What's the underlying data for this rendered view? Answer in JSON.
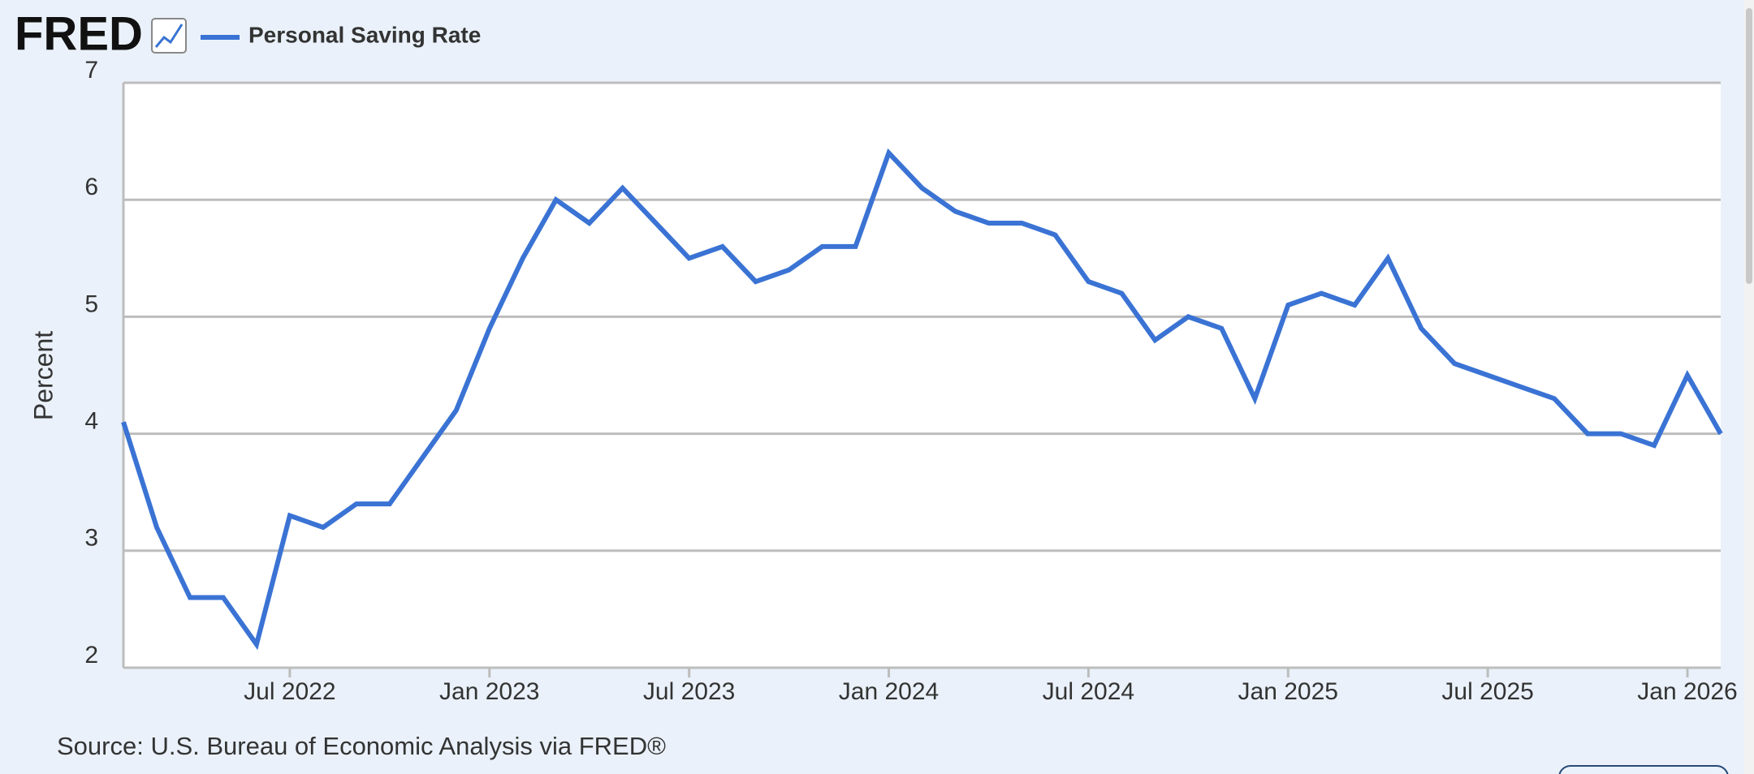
{
  "brand": "FRED",
  "chart_data": {
    "type": "line",
    "y_label": "Percent",
    "source": "Source: U.S. Bureau of Economic Analysis via FRED®",
    "x": [
      "2022-02",
      "2022-03",
      "2022-04",
      "2022-05",
      "2022-06",
      "2022-07",
      "2022-08",
      "2022-09",
      "2022-10",
      "2022-11",
      "2022-12",
      "2023-01",
      "2023-02",
      "2023-03",
      "2023-04",
      "2023-05",
      "2023-06",
      "2023-07",
      "2023-08",
      "2023-09",
      "2023-10",
      "2023-11",
      "2023-12",
      "2024-01",
      "2024-02",
      "2024-03",
      "2024-04",
      "2024-05",
      "2024-06",
      "2024-07",
      "2024-08",
      "2024-09",
      "2024-10",
      "2024-11",
      "2024-12",
      "2025-01",
      "2025-02",
      "2025-03",
      "2025-04",
      "2025-05",
      "2025-06",
      "2025-07",
      "2025-08",
      "2025-09",
      "2025-10",
      "2025-11",
      "2025-12",
      "2026-01",
      "2026-02"
    ],
    "series": [
      {
        "name": "Personal Saving Rate",
        "color": "#3a73d4",
        "values": [
          4.1,
          3.2,
          2.6,
          2.6,
          2.2,
          3.3,
          3.2,
          3.4,
          3.4,
          3.8,
          4.2,
          4.9,
          5.5,
          6.0,
          5.8,
          6.1,
          5.8,
          5.5,
          5.6,
          5.3,
          5.4,
          5.6,
          5.6,
          6.4,
          6.1,
          5.9,
          5.8,
          5.8,
          5.7,
          5.3,
          5.2,
          4.8,
          5.0,
          4.9,
          4.3,
          5.1,
          5.2,
          5.1,
          5.5,
          4.9,
          4.6,
          4.5,
          4.4,
          4.3,
          4.0,
          4.0,
          3.9,
          4.5,
          4.0
        ]
      }
    ],
    "xlim": [
      "2022-02",
      "2026-02"
    ],
    "xticks": [
      {
        "value": "2022-07",
        "label": "Jul 2022"
      },
      {
        "value": "2023-01",
        "label": "Jan 2023"
      },
      {
        "value": "2023-07",
        "label": "Jul 2023"
      },
      {
        "value": "2024-01",
        "label": "Jan 2024"
      },
      {
        "value": "2024-07",
        "label": "Jul 2024"
      },
      {
        "value": "2025-01",
        "label": "Jan 2025"
      },
      {
        "value": "2025-07",
        "label": "Jul 2025"
      },
      {
        "value": "2026-01",
        "label": "Jan 2026"
      }
    ],
    "ylim": [
      2,
      7
    ],
    "yticks": [
      2,
      3,
      4,
      5,
      6,
      7
    ],
    "grid": true
  }
}
